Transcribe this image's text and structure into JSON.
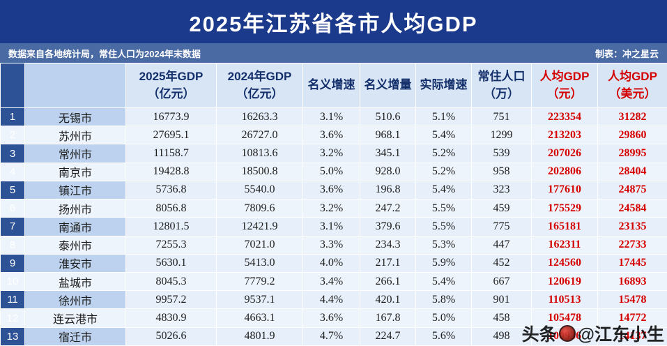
{
  "chart_data": {
    "type": "table",
    "title": "2025年江苏省各市人均GDP",
    "source_note": "数据来自各地统计局，常住人口为2024年末数据",
    "credit": "制表：冲之星云",
    "accent_colors": {
      "title_bg": "#1c3a8c",
      "subtitle_bg": "#4a6aa4",
      "rank_col_bg": "#2e5296",
      "city_col_bg": "#bcd2ee",
      "cell_bg": "#e7f0fa",
      "highlight_text": "#d50000"
    },
    "header": [
      {
        "l1": "",
        "l2": ""
      },
      {
        "l1": "",
        "l2": ""
      },
      {
        "l1": "2025年GDP",
        "l2": "（亿元）"
      },
      {
        "l1": "2024年GDP",
        "l2": "（亿元）"
      },
      {
        "l1": "名义增速",
        "l2": ""
      },
      {
        "l1": "名义增量",
        "l2": ""
      },
      {
        "l1": "实际增速",
        "l2": ""
      },
      {
        "l1": "常住人口",
        "l2": "（万）"
      },
      {
        "l1": "人均GDP",
        "l2": "（元）"
      },
      {
        "l1": "人均GDP",
        "l2": "（美元）"
      }
    ],
    "rows": [
      [
        "1",
        "无锡市",
        "16773.9",
        "16263.3",
        "3.1%",
        "510.6",
        "5.1%",
        "751",
        "223354",
        "31282"
      ],
      [
        "2",
        "苏州市",
        "27695.1",
        "26727.0",
        "3.6%",
        "968.1",
        "5.4%",
        "1299",
        "213203",
        "29860"
      ],
      [
        "3",
        "常州市",
        "11158.7",
        "10813.6",
        "3.2%",
        "345.1",
        "5.2%",
        "539",
        "207026",
        "28995"
      ],
      [
        "4",
        "南京市",
        "19428.8",
        "18500.8",
        "5.0%",
        "928.0",
        "5.2%",
        "958",
        "202806",
        "28404"
      ],
      [
        "5",
        "镇江市",
        "5736.8",
        "5540.0",
        "3.6%",
        "196.8",
        "5.4%",
        "323",
        "177610",
        "24875"
      ],
      [
        "6",
        "扬州市",
        "8056.8",
        "7809.6",
        "3.2%",
        "247.2",
        "5.5%",
        "459",
        "175529",
        "24584"
      ],
      [
        "7",
        "南通市",
        "12801.5",
        "12421.9",
        "3.1%",
        "379.6",
        "5.5%",
        "775",
        "165181",
        "23135"
      ],
      [
        "8",
        "泰州市",
        "7255.3",
        "7021.0",
        "3.3%",
        "234.3",
        "5.3%",
        "447",
        "162311",
        "22733"
      ],
      [
        "9",
        "淮安市",
        "5630.1",
        "5413.0",
        "4.0%",
        "217.1",
        "5.9%",
        "452",
        "124560",
        "17445"
      ],
      [
        "10",
        "盐城市",
        "8045.3",
        "7779.2",
        "3.4%",
        "266.1",
        "5.4%",
        "667",
        "120619",
        "16893"
      ],
      [
        "11",
        "徐州市",
        "9957.2",
        "9537.1",
        "4.4%",
        "420.1",
        "5.8%",
        "901",
        "110513",
        "15478"
      ],
      [
        "12",
        "连云港市",
        "4830.9",
        "4663.1",
        "3.6%",
        "167.8",
        "5.0%",
        "458",
        "105478",
        "14772"
      ],
      [
        "13",
        "宿迁市",
        "5026.6",
        "4801.9",
        "4.7%",
        "224.7",
        "5.6%",
        "498",
        "100936",
        "14137"
      ]
    ]
  },
  "watermark": {
    "prefix": "头条",
    "suffix": "@江东小生"
  }
}
